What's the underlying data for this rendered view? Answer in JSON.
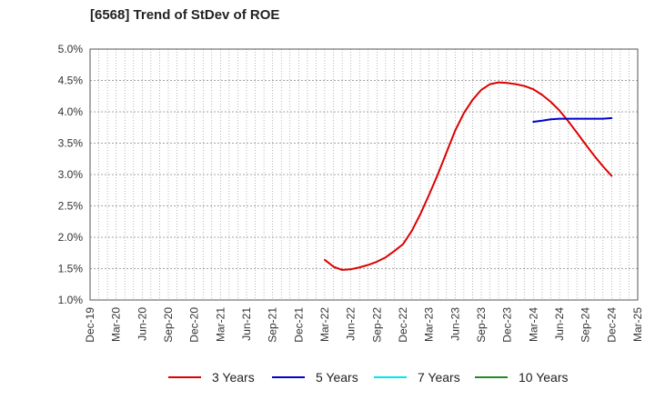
{
  "chart_data": {
    "type": "line",
    "title": "[6568]  Trend of StDev of ROE",
    "xlabel": "",
    "ylabel": "",
    "x_ticks": [
      "Dec-19",
      "Mar-20",
      "Jun-20",
      "Sep-20",
      "Dec-20",
      "Mar-21",
      "Jun-21",
      "Sep-21",
      "Dec-21",
      "Mar-22",
      "Jun-22",
      "Sep-22",
      "Dec-22",
      "Mar-23",
      "Jun-23",
      "Sep-23",
      "Dec-23",
      "Mar-24",
      "Jun-24",
      "Sep-24",
      "Dec-24",
      "Mar-25"
    ],
    "y_ticks": [
      "1.0%",
      "1.5%",
      "2.0%",
      "2.5%",
      "3.0%",
      "3.5%",
      "4.0%",
      "4.5%",
      "5.0%"
    ],
    "ylim": [
      1.0,
      5.0
    ],
    "y_unit": "%",
    "grid": true,
    "legend_position": "bottom",
    "series": [
      {
        "name": "3 Years",
        "color": "#dd0000",
        "x": [
          "Mar-22",
          "Apr-22",
          "May-22",
          "Jun-22",
          "Jul-22",
          "Aug-22",
          "Sep-22",
          "Oct-22",
          "Nov-22",
          "Dec-22",
          "Jan-23",
          "Feb-23",
          "Mar-23",
          "Apr-23",
          "May-23",
          "Jun-23",
          "Jul-23",
          "Aug-23",
          "Sep-23",
          "Oct-23",
          "Nov-23",
          "Dec-23",
          "Jan-24",
          "Feb-24",
          "Mar-24",
          "Apr-24",
          "May-24",
          "Jun-24",
          "Jul-24",
          "Aug-24",
          "Sep-24",
          "Oct-24",
          "Nov-24",
          "Dec-24"
        ],
        "values": [
          1.64,
          1.53,
          1.48,
          1.49,
          1.52,
          1.56,
          1.61,
          1.68,
          1.78,
          1.89,
          2.1,
          2.37,
          2.68,
          3.0,
          3.35,
          3.7,
          3.98,
          4.19,
          4.35,
          4.44,
          4.47,
          4.46,
          4.44,
          4.41,
          4.36,
          4.27,
          4.16,
          4.02,
          3.85,
          3.67,
          3.48,
          3.3,
          3.13,
          2.98
        ]
      },
      {
        "name": "5 Years",
        "color": "#0000cc",
        "x": [
          "Mar-24",
          "Apr-24",
          "May-24",
          "Jun-24",
          "Jul-24",
          "Aug-24",
          "Sep-24",
          "Oct-24",
          "Nov-24",
          "Dec-24"
        ],
        "values": [
          3.84,
          3.86,
          3.88,
          3.89,
          3.89,
          3.89,
          3.89,
          3.89,
          3.89,
          3.9
        ]
      },
      {
        "name": "7 Years",
        "color": "#00e5ee",
        "x": [],
        "values": []
      },
      {
        "name": "10 Years",
        "color": "#228b22",
        "x": [],
        "values": []
      }
    ]
  }
}
